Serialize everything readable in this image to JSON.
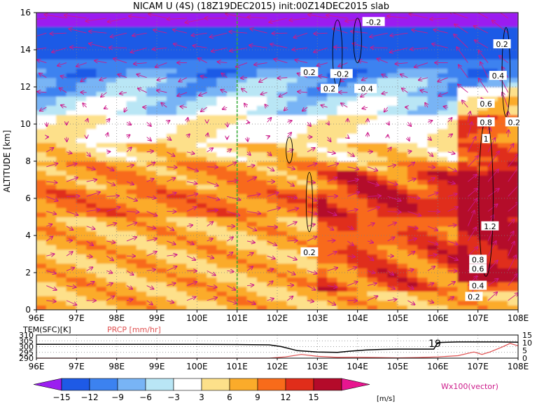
{
  "title": "NICAM U (4S) (18Z19DEC2015) init:00Z14DEC2015 slab",
  "colors": {
    "frame": "#000000",
    "grid": "#808080",
    "vector": "#cc1a8a",
    "contour": "#000000",
    "green_line": "#33aa33",
    "temp_line": "#000000",
    "prcp_line": "#e05050",
    "prcp_label": "#e05050",
    "vector_label": "#cc1a8a"
  },
  "chart_data": [
    {
      "type": "heatmap",
      "title": "NICAM U (4S) (18Z19DEC2015) init:00Z14DEC2015 slab",
      "xlabel": "",
      "ylabel": "ALTITUDE [km]",
      "x_ticks": [
        "96E",
        "97E",
        "98E",
        "99E",
        "100E",
        "101E",
        "102E",
        "103E",
        "104E",
        "105E",
        "106E",
        "107E",
        "108E"
      ],
      "y_ticks": [
        "0",
        "2",
        "4",
        "6",
        "8",
        "10",
        "12",
        "14",
        "16"
      ],
      "xlim": [
        96,
        108
      ],
      "ylim": [
        0,
        16
      ],
      "grid": true,
      "marker_longitude": 101,
      "layers": [
        {
          "z_bottom": 15.2,
          "z_top": 16.0,
          "u": -18
        },
        {
          "z_bottom": 13.6,
          "z_top": 15.2,
          "u": -14
        },
        {
          "z_bottom": 12.6,
          "z_top": 13.6,
          "u": -10
        },
        {
          "z_bottom": 11.6,
          "z_top": 12.6,
          "u": -7
        },
        {
          "z_bottom": 10.5,
          "z_top": 11.6,
          "u": -4
        },
        {
          "z_bottom": 9.0,
          "z_top": 10.5,
          "u": 2
        },
        {
          "z_bottom": 8.0,
          "z_top": 9.0,
          "u": 5
        },
        {
          "z_bottom": 6.5,
          "z_top": 8.0,
          "u": 8
        },
        {
          "z_bottom": 5.0,
          "z_top": 6.5,
          "u": 10
        },
        {
          "z_bottom": 0.0,
          "z_top": 5.0,
          "u": 7
        }
      ],
      "contour_labels": [
        {
          "text": "-0.2",
          "lon": 103.6,
          "alt": 12.7
        },
        {
          "text": "-0.4",
          "lon": 104.2,
          "alt": 11.9
        },
        {
          "text": "0.2",
          "lon": 103.3,
          "alt": 11.9
        },
        {
          "text": "0.2",
          "lon": 102.8,
          "alt": 12.8
        },
        {
          "text": "-0.2",
          "lon": 104.4,
          "alt": 15.5
        },
        {
          "text": "0.2",
          "lon": 107.6,
          "alt": 14.3
        },
        {
          "text": "0.4",
          "lon": 107.5,
          "alt": 12.6
        },
        {
          "text": "0.6",
          "lon": 107.2,
          "alt": 11.1
        },
        {
          "text": "0.8",
          "lon": 107.2,
          "alt": 10.1
        },
        {
          "text": "0.2",
          "lon": 107.9,
          "alt": 10.1
        },
        {
          "text": "1",
          "lon": 107.2,
          "alt": 9.2
        },
        {
          "text": "1.2",
          "lon": 107.3,
          "alt": 4.5
        },
        {
          "text": "0.2",
          "lon": 102.8,
          "alt": 3.1
        },
        {
          "text": "0.8",
          "lon": 107.0,
          "alt": 2.7
        },
        {
          "text": "0.6",
          "lon": 107.0,
          "alt": 2.2
        },
        {
          "text": "0.4",
          "lon": 107.0,
          "alt": 1.3
        },
        {
          "text": "0.2",
          "lon": 106.9,
          "alt": 0.7
        }
      ],
      "legend": {
        "title": "[m/s]",
        "levels": [
          "-15",
          "-12",
          "-9",
          "-6",
          "-3",
          "3",
          "6",
          "9",
          "12",
          "15"
        ],
        "colors": [
          "#9b1ff0",
          "#1e5ae6",
          "#3c82f0",
          "#78b4f5",
          "#b9e6f5",
          "#ffffff",
          "#fde08a",
          "#fbab2a",
          "#f86b1a",
          "#e02d1a",
          "#b40a2a",
          "#e8158f"
        ]
      },
      "vector_label": "Wx100(vector)"
    },
    {
      "type": "line",
      "x_ticks": [
        "96E",
        "97E",
        "98E",
        "99E",
        "100E",
        "101E",
        "102E",
        "103E",
        "104E",
        "105E",
        "106E",
        "107E",
        "108E"
      ],
      "xlim": [
        96,
        108
      ],
      "left_axis": {
        "label": "TEM(SFC)[K]",
        "ticks": [
          "290",
          "295",
          "300",
          "305",
          "310"
        ],
        "range": [
          290,
          310
        ]
      },
      "right_axis": {
        "label": "PRCP [mm/hr]",
        "ticks": [
          "0",
          "5",
          "10",
          "15"
        ],
        "range": [
          0,
          15
        ]
      },
      "annotation": "19",
      "series": [
        {
          "name": "TEM(SFC)[K]",
          "x": [
            96,
            97,
            98,
            99,
            100,
            101,
            101.8,
            102.1,
            102.5,
            103.0,
            103.5,
            103.8,
            104.2,
            104.6,
            105.0,
            105.5,
            105.9,
            106.0,
            106.5,
            107.0,
            107.5,
            108.0
          ],
          "y": [
            302.0,
            302.0,
            302.0,
            302.0,
            302.0,
            301.8,
            301.5,
            300.0,
            296.5,
            295.3,
            295.0,
            296.0,
            297.0,
            297.6,
            297.8,
            297.8,
            297.8,
            303.5,
            304.0,
            304.0,
            304.0,
            303.8
          ]
        },
        {
          "name": "PRCP [mm/hr]",
          "x": [
            96,
            100,
            101.8,
            102.2,
            102.6,
            103.0,
            103.5,
            104.0,
            104.5,
            105.0,
            105.5,
            106.0,
            106.5,
            106.9,
            107.1,
            107.3,
            107.6,
            107.8,
            108.0
          ],
          "y": [
            0,
            0,
            0,
            0.8,
            2.4,
            1.2,
            0.5,
            0.6,
            0.4,
            0.2,
            0.4,
            0.8,
            1.6,
            4.0,
            2.4,
            4.0,
            7.2,
            9.6,
            8.0
          ]
        }
      ]
    }
  ]
}
